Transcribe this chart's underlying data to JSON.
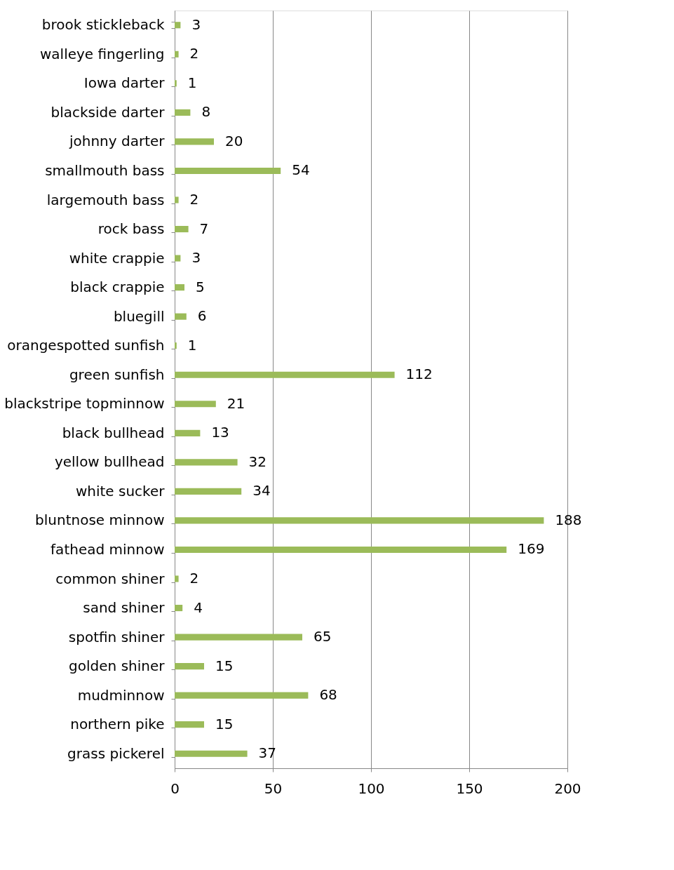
{
  "chart_data": {
    "type": "bar",
    "orientation": "horizontal",
    "categories": [
      "brook stickleback",
      "walleye fingerling",
      "Iowa darter",
      "blackside darter",
      "johnny darter",
      "smallmouth bass",
      "largemouth bass",
      "rock bass",
      "white crappie",
      "black crappie",
      "bluegill",
      "orangespotted sunfish",
      "green sunfish",
      "blackstripe topminnow",
      "black bullhead",
      "yellow bullhead",
      "white sucker",
      "bluntnose minnow",
      "fathead minnow",
      "common shiner",
      "sand shiner",
      "spotfin shiner",
      "golden shiner",
      "mudminnow",
      "northern pike",
      "grass pickerel"
    ],
    "values": [
      3,
      2,
      1,
      8,
      20,
      54,
      2,
      7,
      3,
      5,
      6,
      1,
      112,
      21,
      13,
      32,
      34,
      188,
      169,
      2,
      4,
      65,
      15,
      68,
      15,
      37
    ],
    "color": "#9bbb59",
    "xlim": [
      0,
      200
    ],
    "xticks": [
      0,
      50,
      100,
      150,
      200
    ],
    "grid": "x",
    "data_labels": true
  }
}
